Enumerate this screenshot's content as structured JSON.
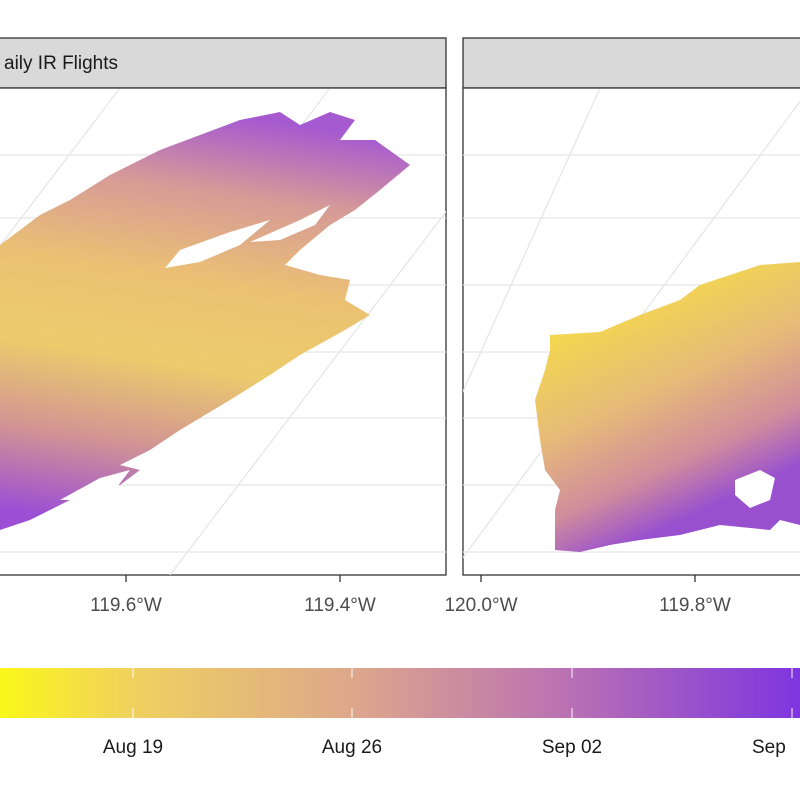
{
  "panels": [
    {
      "strip_title": "aily IR Flights",
      "x_ticks": [
        "119.6°W",
        "119.4°W"
      ]
    },
    {
      "strip_title": "",
      "x_ticks": [
        "120.0°W",
        "119.8°W"
      ]
    }
  ],
  "legend": {
    "type": "colorbar",
    "ticks": [
      "Aug 19",
      "Aug 26",
      "Sep 02",
      "Sep"
    ],
    "colors": [
      "#f9f91f",
      "#ecc86a",
      "#d79f8f",
      "#b46fb9",
      "#7e35e0"
    ]
  },
  "colors": {
    "strip_bg": "#d9d9d9",
    "panel_border": "#333333",
    "grid": "#ebebeb",
    "early": "#f5e23a",
    "mid": "#dfa98a",
    "late": "#9a55cf"
  }
}
